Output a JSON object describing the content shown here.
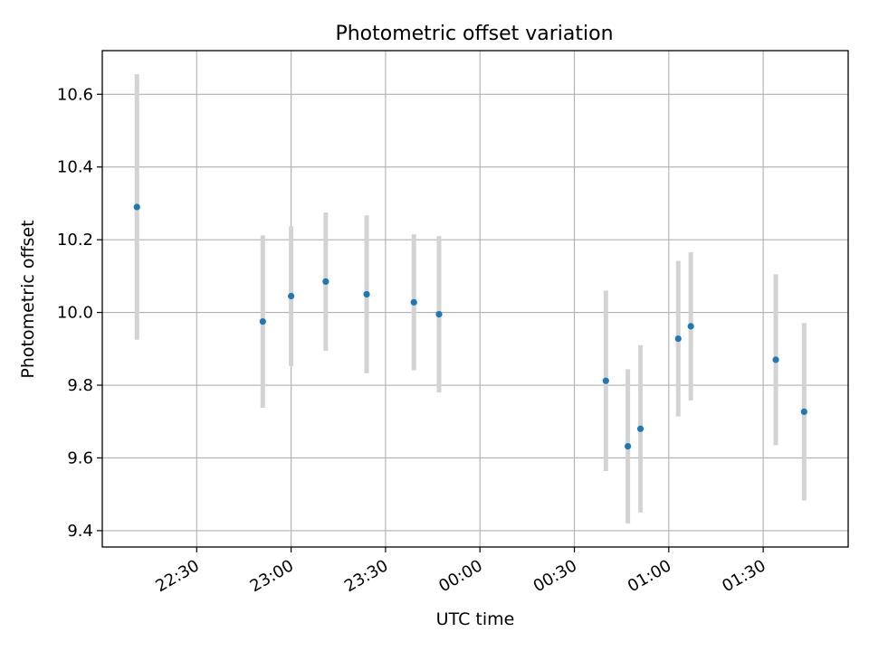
{
  "chart_data": {
    "type": "scatter",
    "title": "Photometric offset variation",
    "xlabel": "UTC time",
    "ylabel": "Photometric offset",
    "x_unit": "minutes",
    "xlim": [
      "22:00",
      "01:57"
    ],
    "ylim": [
      9.355,
      10.72
    ],
    "x_ticks": [
      "22:30",
      "23:00",
      "23:30",
      "00:00",
      "00:30",
      "01:00",
      "01:30"
    ],
    "y_ticks": [
      "9.4",
      "9.6",
      "9.8",
      "10.0",
      "10.2",
      "10.4",
      "10.6"
    ],
    "grid": true,
    "colors": {
      "marker": "#1f77b4",
      "errorbar": "#d3d3d3",
      "grid": "#b0b0b0"
    },
    "points": [
      {
        "x": "22:11",
        "y": 10.29,
        "err": 0.365
      },
      {
        "x": "22:51",
        "y": 9.975,
        "err": 0.237
      },
      {
        "x": "23:00",
        "y": 10.045,
        "err": 0.192
      },
      {
        "x": "23:11",
        "y": 10.085,
        "err": 0.19
      },
      {
        "x": "23:24",
        "y": 10.05,
        "err": 0.217
      },
      {
        "x": "23:39",
        "y": 10.028,
        "err": 0.187
      },
      {
        "x": "23:47",
        "y": 9.995,
        "err": 0.215
      },
      {
        "x": "00:40",
        "y": 9.812,
        "err": 0.248
      },
      {
        "x": "00:47",
        "y": 9.632,
        "err": 0.212
      },
      {
        "x": "00:51",
        "y": 9.68,
        "err": 0.23
      },
      {
        "x": "01:03",
        "y": 9.928,
        "err": 0.214
      },
      {
        "x": "01:07",
        "y": 9.962,
        "err": 0.204
      },
      {
        "x": "01:34",
        "y": 9.87,
        "err": 0.235
      },
      {
        "x": "01:43",
        "y": 9.727,
        "err": 0.244
      }
    ]
  }
}
